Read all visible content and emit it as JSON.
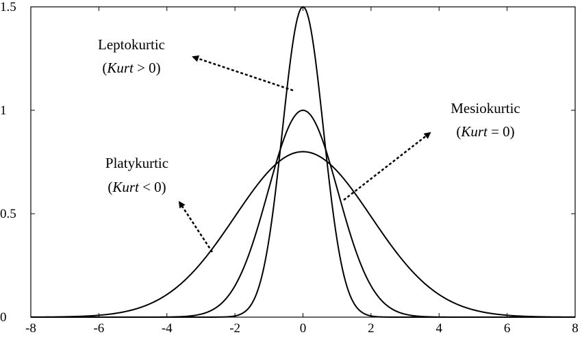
{
  "chart_data": {
    "type": "line",
    "title": "",
    "xlabel": "",
    "ylabel": "",
    "xlim": [
      -8,
      8
    ],
    "ylim": [
      0,
      1.5
    ],
    "x_ticks": [
      -8,
      -6,
      -4,
      -2,
      0,
      2,
      4,
      6,
      8
    ],
    "y_ticks": [
      0,
      0.5,
      1,
      1.5
    ],
    "x_tick_labels": [
      "-8",
      "-6",
      "-4",
      "-2",
      "0",
      "2",
      "4",
      "6",
      "8"
    ],
    "y_tick_labels": [
      "0",
      "0.5",
      "1",
      "1.5"
    ],
    "grid": false,
    "series": [
      {
        "name": "Leptokurtic",
        "peak": 1.5,
        "points_x": [
          -1.5,
          -1,
          -0.5,
          0,
          0.5,
          1,
          1.5
        ],
        "points_y": [
          0.04,
          0.33,
          1.13,
          1.5,
          1.13,
          0.33,
          0.04
        ]
      },
      {
        "name": "Mesiokurtic",
        "peak": 1.0,
        "points_x": [
          -3,
          -2,
          -1,
          0,
          1,
          2,
          3
        ],
        "points_y": [
          0.02,
          0.13,
          0.62,
          1.0,
          0.62,
          0.13,
          0.02
        ]
      },
      {
        "name": "Platykurtic",
        "peak": 0.8,
        "points_x": [
          -6,
          -4,
          -2,
          0,
          2,
          4,
          6
        ],
        "points_y": [
          0.01,
          0.11,
          0.48,
          0.8,
          0.48,
          0.11,
          0.01
        ]
      }
    ],
    "annotations": [
      {
        "line1": "Leptokurtic",
        "line2_prefix": "(",
        "line2_italic": "Kurt",
        "line2_suffix": " > 0)"
      },
      {
        "line1": "Mesiokurtic",
        "line2_prefix": "(",
        "line2_italic": "Kurt",
        "line2_suffix": " = 0)"
      },
      {
        "line1": "Platykurtic",
        "line2_prefix": "(",
        "line2_italic": "Kurt",
        "line2_suffix": " < 0)"
      }
    ]
  }
}
